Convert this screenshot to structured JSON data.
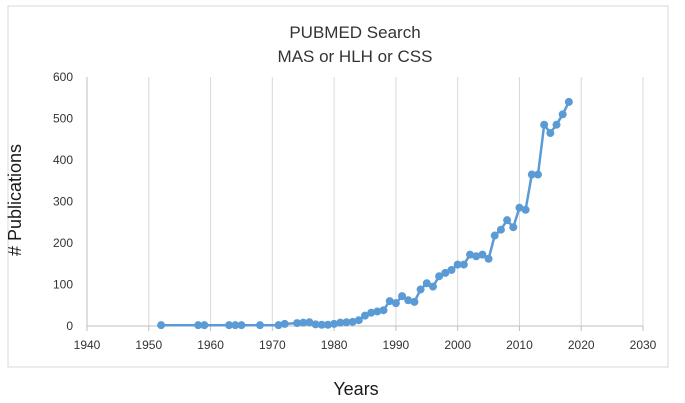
{
  "chart_data": {
    "type": "line",
    "title": [
      "PUBMED Search",
      "MAS or HLH or CSS"
    ],
    "xlabel": "Years",
    "ylabel": "# Publications",
    "xlim": [
      1940,
      2030
    ],
    "ylim": [
      0,
      600
    ],
    "xticks": [
      1940,
      1950,
      1960,
      1970,
      1980,
      1990,
      2000,
      2010,
      2020,
      2030
    ],
    "yticks": [
      0,
      100,
      200,
      300,
      400,
      500,
      600
    ],
    "grid": "vertical",
    "legend": "none",
    "line_color": "#5b9bd5",
    "series": [
      {
        "points": [
          [
            1952,
            2
          ],
          [
            1958,
            2
          ],
          [
            1959,
            2
          ],
          [
            1963,
            2
          ],
          [
            1964,
            2
          ],
          [
            1965,
            2
          ],
          [
            1968,
            2
          ],
          [
            1971,
            2
          ],
          [
            1972,
            5
          ],
          [
            1974,
            7
          ],
          [
            1975,
            8
          ],
          [
            1976,
            9
          ],
          [
            1977,
            4
          ],
          [
            1978,
            3
          ],
          [
            1979,
            3
          ],
          [
            1980,
            5
          ],
          [
            1981,
            8
          ],
          [
            1982,
            9
          ],
          [
            1983,
            10
          ],
          [
            1984,
            14
          ],
          [
            1985,
            25
          ],
          [
            1986,
            32
          ],
          [
            1987,
            35
          ],
          [
            1988,
            38
          ],
          [
            1989,
            60
          ],
          [
            1990,
            55
          ],
          [
            1991,
            72
          ],
          [
            1992,
            62
          ],
          [
            1993,
            58
          ],
          [
            1994,
            88
          ],
          [
            1995,
            103
          ],
          [
            1996,
            95
          ],
          [
            1997,
            120
          ],
          [
            1998,
            128
          ],
          [
            1999,
            135
          ],
          [
            2000,
            148
          ],
          [
            2001,
            148
          ],
          [
            2002,
            172
          ],
          [
            2003,
            168
          ],
          [
            2004,
            172
          ],
          [
            2005,
            162
          ],
          [
            2006,
            218
          ],
          [
            2007,
            232
          ],
          [
            2008,
            255
          ],
          [
            2009,
            238
          ],
          [
            2010,
            285
          ],
          [
            2011,
            280
          ],
          [
            2012,
            365
          ],
          [
            2013,
            365
          ],
          [
            2014,
            485
          ],
          [
            2015,
            465
          ],
          [
            2016,
            485
          ],
          [
            2017,
            510
          ],
          [
            2018,
            540
          ]
        ]
      }
    ]
  }
}
